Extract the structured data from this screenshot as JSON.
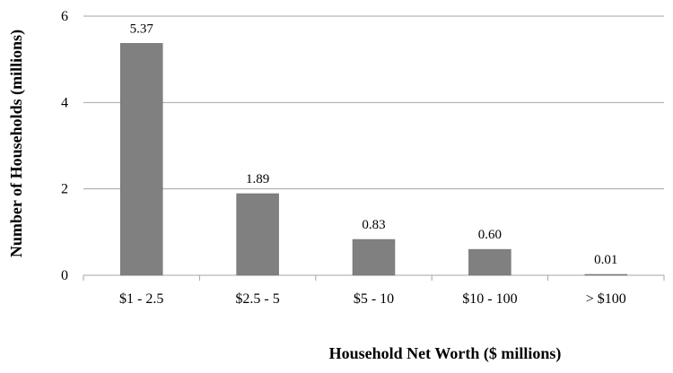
{
  "chart_data": {
    "type": "bar",
    "title": "",
    "xlabel": "Household Net Worth ($ millions)",
    "ylabel": "Number of Households (millions)",
    "categories": [
      "$1 - 2.5",
      "$2.5 - 5",
      "$5 - 10",
      "$10 - 100",
      "> $100"
    ],
    "values": [
      5.37,
      1.89,
      0.83,
      0.6,
      0.01
    ],
    "value_labels": [
      "5.37",
      "1.89",
      "0.83",
      "0.60",
      "0.01"
    ],
    "ylim": [
      0,
      6
    ],
    "yticks": [
      0,
      2,
      4,
      6
    ],
    "grid": true,
    "legend": "none",
    "colors": {
      "bar": "#808080",
      "grid": "#a6a6a6",
      "axis": "#a6a6a6"
    }
  }
}
